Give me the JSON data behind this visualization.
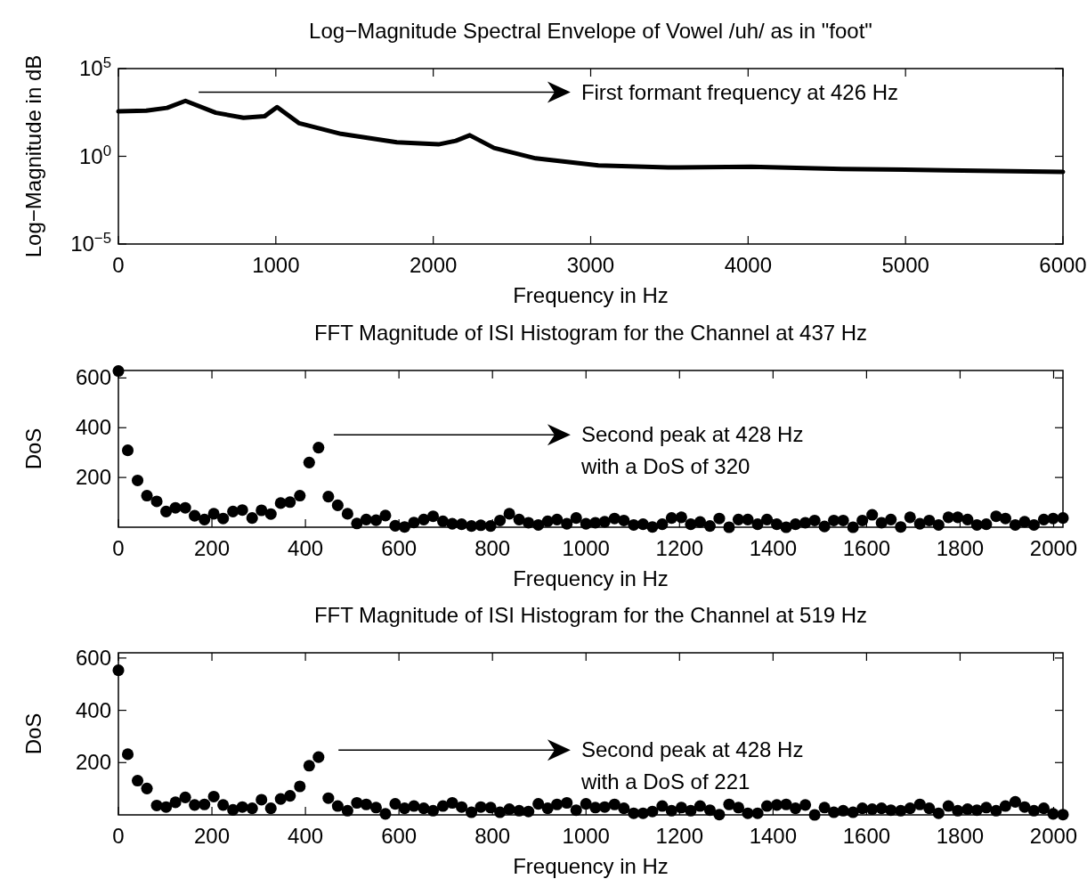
{
  "chart_data": [
    {
      "type": "line",
      "title": "Log−Magnitude Spectral Envelope of Vowel /uh/ as in \"foot\"",
      "xlabel": "Frequency in Hz",
      "ylabel": "Log−Magnitude in dB",
      "log": "y",
      "color": "#000000",
      "x": [
        0,
        177,
        309,
        426,
        619,
        795,
        928,
        1008,
        1149,
        1414,
        1768,
        2033,
        2143,
        2232,
        2386,
        2651,
        3049,
        3491,
        4021,
        4596,
        5258,
        6000
      ],
      "values": [
        363,
        398,
        575,
        1445,
        302,
        158,
        190,
        631,
        76,
        19,
        6.3,
        4.8,
        7.6,
        15.8,
        3,
        0.76,
        0.3,
        0.23,
        0.25,
        0.19,
        0.16,
        0.13
      ],
      "xlim": [
        0,
        6000
      ],
      "ylim": [
        1e-05,
        100000
      ],
      "xticks": [
        0,
        1000,
        2000,
        3000,
        4000,
        5000,
        6000
      ],
      "yticks": [
        {
          "value": 1e-05,
          "label": "10$^{−5}$"
        },
        {
          "value": 1,
          "label": "10$^{0}$"
        },
        {
          "value": 100000,
          "label": "10$^{5}$"
        }
      ],
      "annotations": [
        "First formant frequency at 426 Hz"
      ]
    },
    {
      "type": "scatter",
      "title": "FFT Magnitude of ISI Histogram for the Channel at 437 Hz",
      "xlabel": "Frequency in Hz",
      "ylabel": "DoS",
      "marker": "circle",
      "color": "#000000",
      "x": [
        0,
        20,
        41,
        61,
        82,
        102,
        122,
        143,
        163,
        184,
        204,
        224,
        245,
        265,
        286,
        306,
        326,
        347,
        367,
        388,
        408,
        428,
        449,
        469,
        490,
        510,
        530,
        551,
        571,
        592,
        612,
        632,
        653,
        673,
        694,
        714,
        734,
        755,
        775,
        796,
        816,
        836,
        857,
        877,
        898,
        918,
        938,
        959,
        979,
        1000,
        1020,
        1040,
        1061,
        1081,
        1102,
        1122,
        1142,
        1163,
        1183,
        1204,
        1224,
        1244,
        1265,
        1285,
        1306,
        1326,
        1346,
        1367,
        1387,
        1408,
        1428,
        1448,
        1469,
        1489,
        1510,
        1530,
        1550,
        1571,
        1591,
        1612,
        1632,
        1652,
        1673,
        1693,
        1714,
        1734,
        1754,
        1775,
        1795,
        1816,
        1836,
        1856,
        1877,
        1897,
        1918,
        1938,
        1958,
        1979,
        1999,
        2020
      ],
      "values": [
        628,
        309,
        188,
        127,
        104,
        63,
        78,
        78,
        46,
        31,
        54,
        35,
        63,
        69,
        37,
        68,
        53,
        97,
        101,
        127,
        260,
        320,
        123,
        88,
        54,
        15,
        31,
        28,
        47,
        6,
        1,
        19,
        31,
        44,
        24,
        14,
        12,
        5,
        8,
        5,
        27,
        54,
        31,
        18,
        9,
        24,
        31,
        14,
        37,
        14,
        18,
        22,
        35,
        27,
        9,
        12,
        1,
        12,
        37,
        40,
        12,
        21,
        5,
        35,
        0,
        31,
        31,
        12,
        31,
        12,
        0,
        12,
        18,
        27,
        3,
        27,
        27,
        0,
        27,
        50,
        18,
        31,
        1,
        40,
        14,
        27,
        9,
        40,
        40,
        31,
        9,
        12,
        44,
        35,
        9,
        22,
        9,
        31,
        35,
        37
      ],
      "xlim": [
        0,
        2020
      ],
      "ylim": [
        0,
        630
      ],
      "xticks": [
        0,
        200,
        400,
        600,
        800,
        1000,
        1200,
        1400,
        1600,
        1800,
        2000
      ],
      "yticks": [
        200,
        400,
        600
      ],
      "annotations": [
        "Second peak at 428 Hz\nwith a DoS of 320"
      ]
    },
    {
      "type": "scatter",
      "title": "FFT Magnitude of ISI Histogram for the Channel at 519 Hz",
      "xlabel": "Frequency in Hz",
      "ylabel": "DoS",
      "marker": "circle",
      "color": "#000000",
      "x": [
        0,
        20,
        41,
        61,
        82,
        102,
        122,
        143,
        163,
        184,
        204,
        224,
        245,
        265,
        286,
        306,
        326,
        347,
        367,
        388,
        408,
        428,
        449,
        469,
        490,
        510,
        530,
        551,
        571,
        592,
        612,
        632,
        653,
        673,
        694,
        714,
        734,
        755,
        775,
        796,
        816,
        836,
        857,
        877,
        898,
        918,
        938,
        959,
        979,
        1000,
        1020,
        1040,
        1061,
        1081,
        1102,
        1122,
        1142,
        1163,
        1183,
        1204,
        1224,
        1244,
        1265,
        1285,
        1306,
        1326,
        1346,
        1367,
        1387,
        1408,
        1428,
        1448,
        1469,
        1489,
        1510,
        1530,
        1550,
        1571,
        1591,
        1612,
        1632,
        1652,
        1673,
        1693,
        1714,
        1734,
        1754,
        1775,
        1795,
        1816,
        1836,
        1856,
        1877,
        1897,
        1918,
        1938,
        1958,
        1979,
        1999,
        2020
      ],
      "values": [
        553,
        232,
        131,
        101,
        36,
        30,
        48,
        67,
        38,
        40,
        70,
        38,
        19,
        30,
        25,
        58,
        25,
        61,
        73,
        109,
        188,
        221,
        64,
        34,
        16,
        46,
        40,
        28,
        4,
        42,
        25,
        34,
        25,
        16,
        34,
        46,
        30,
        10,
        30,
        28,
        10,
        22,
        16,
        13,
        42,
        25,
        40,
        46,
        18,
        42,
        28,
        30,
        40,
        25,
        6,
        6,
        13,
        34,
        16,
        28,
        16,
        34,
        18,
        1,
        40,
        28,
        6,
        6,
        34,
        38,
        40,
        25,
        38,
        0,
        28,
        10,
        16,
        10,
        25,
        22,
        25,
        18,
        16,
        25,
        40,
        25,
        6,
        34,
        16,
        22,
        18,
        28,
        16,
        34,
        50,
        30,
        16,
        25,
        4,
        1
      ],
      "xlim": [
        0,
        2020
      ],
      "ylim": [
        0,
        620
      ],
      "xticks": [
        0,
        200,
        400,
        600,
        800,
        1000,
        1200,
        1400,
        1600,
        1800,
        2000
      ],
      "yticks": [
        200,
        400,
        600
      ],
      "annotations": [
        "Second peak at 428 Hz\nwith a DoS of 221"
      ]
    }
  ]
}
